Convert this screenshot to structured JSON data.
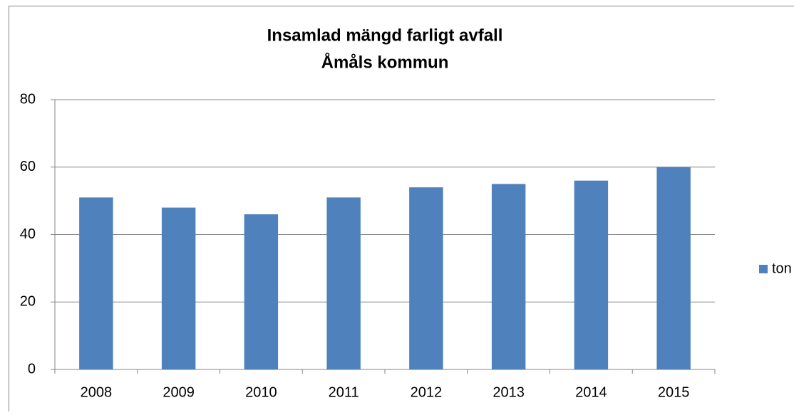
{
  "chart_data": {
    "type": "bar",
    "title": [
      "Insamlad mängd farligt avfall",
      "Åmåls kommun"
    ],
    "categories": [
      "2008",
      "2009",
      "2010",
      "2011",
      "2012",
      "2013",
      "2014",
      "2015"
    ],
    "series": [
      {
        "name": "ton",
        "color": "#4f81bd",
        "values": [
          51,
          48,
          46,
          51,
          54,
          55,
          56,
          60
        ]
      }
    ],
    "ylim": [
      0,
      80
    ],
    "yticks": [
      0,
      20,
      40,
      60,
      80
    ],
    "grid": true,
    "legend": "right"
  }
}
